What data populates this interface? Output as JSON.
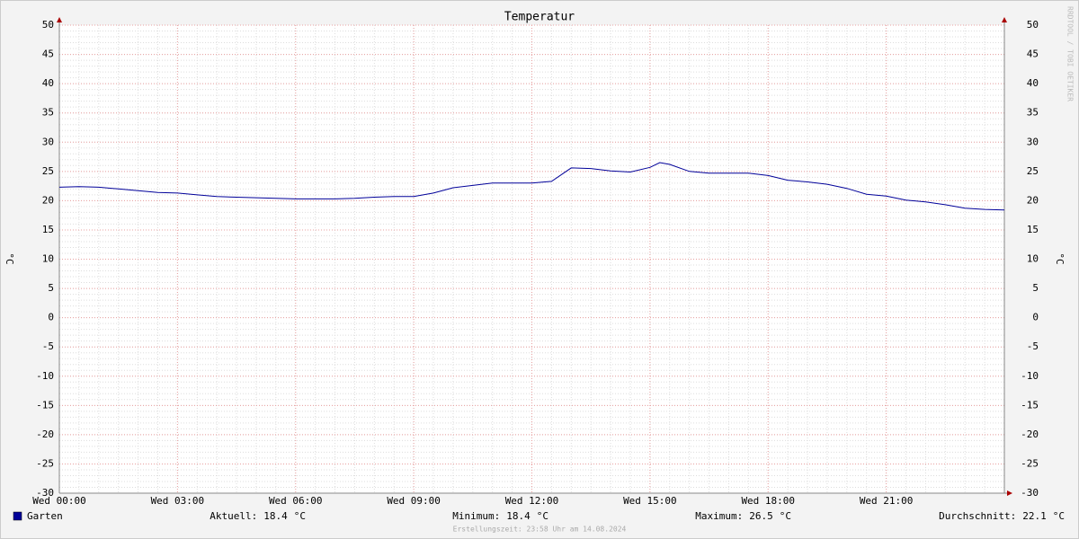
{
  "chart_data": {
    "type": "line",
    "title": "Temperatur",
    "y_label": "°C",
    "watermark": "RRDTOOL / TOBI OETIKER",
    "footer": "Erstellungszeit: 23:58 Uhr am 14.08.2024",
    "xlim": [
      0,
      24
    ],
    "xticks": [
      {
        "value": 0,
        "label": "Wed 00:00"
      },
      {
        "value": 3,
        "label": "Wed 03:00"
      },
      {
        "value": 6,
        "label": "Wed 06:00"
      },
      {
        "value": 9,
        "label": "Wed 09:00"
      },
      {
        "value": 12,
        "label": "Wed 12:00"
      },
      {
        "value": 15,
        "label": "Wed 15:00"
      },
      {
        "value": 18,
        "label": "Wed 18:00"
      },
      {
        "value": 21,
        "label": "Wed 21:00"
      }
    ],
    "ylim": [
      -30,
      50
    ],
    "yticks": [
      -30,
      -25,
      -20,
      -15,
      -10,
      -5,
      0,
      5,
      10,
      15,
      20,
      25,
      30,
      35,
      40,
      45,
      50
    ],
    "grid": true,
    "x": [
      0,
      0.5,
      1,
      1.5,
      2,
      2.5,
      3,
      3.5,
      4,
      4.5,
      5,
      5.5,
      6,
      6.5,
      7,
      7.5,
      8,
      8.5,
      9,
      9.5,
      10,
      10.5,
      11,
      11.5,
      12,
      12.5,
      13,
      13.5,
      14,
      14.5,
      15,
      15.25,
      15.5,
      16,
      16.5,
      17,
      17.5,
      18,
      18.5,
      19,
      19.5,
      20,
      20.5,
      21,
      21.5,
      22,
      22.5,
      23,
      23.5,
      24
    ],
    "series": [
      {
        "name": "Garten",
        "color": "#000099",
        "values": [
          22.3,
          22.4,
          22.3,
          22.0,
          21.7,
          21.4,
          21.3,
          21.0,
          20.7,
          20.6,
          20.5,
          20.4,
          20.3,
          20.3,
          20.3,
          20.4,
          20.6,
          20.7,
          20.7,
          21.3,
          22.2,
          22.6,
          23.0,
          23.0,
          23.0,
          23.3,
          25.6,
          25.5,
          25.1,
          24.9,
          25.7,
          26.5,
          26.2,
          25.0,
          24.7,
          24.7,
          24.7,
          24.3,
          23.5,
          23.2,
          22.8,
          22.1,
          21.1,
          20.8,
          20.1,
          19.8,
          19.3,
          18.7,
          18.5,
          18.4
        ]
      }
    ],
    "stats": [
      {
        "label": "Aktuell:",
        "value": 18.4,
        "unit": "°C"
      },
      {
        "label": "Minimum:",
        "value": 18.4,
        "unit": "°C"
      },
      {
        "label": "Maximum:",
        "value": 26.5,
        "unit": "°C"
      },
      {
        "label": "Durchschnitt:",
        "value": 22.1,
        "unit": "°C"
      }
    ]
  }
}
